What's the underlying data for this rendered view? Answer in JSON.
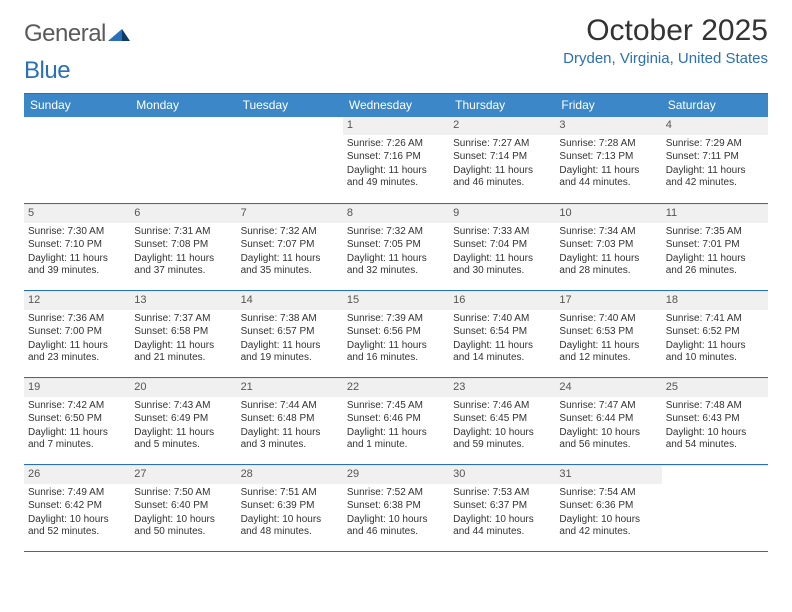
{
  "logo": {
    "general": "General",
    "blue": "Blue"
  },
  "title": "October 2025",
  "location": "Dryden, Virginia, United States",
  "header_bg": "#3b87c8",
  "accent": "#2a70b8",
  "weekdays": [
    "Sunday",
    "Monday",
    "Tuesday",
    "Wednesday",
    "Thursday",
    "Friday",
    "Saturday"
  ],
  "weeks": [
    [
      {
        "n": "",
        "sunrise": "",
        "sunset": "",
        "daylight": ""
      },
      {
        "n": "",
        "sunrise": "",
        "sunset": "",
        "daylight": ""
      },
      {
        "n": "",
        "sunrise": "",
        "sunset": "",
        "daylight": ""
      },
      {
        "n": "1",
        "sunrise": "Sunrise: 7:26 AM",
        "sunset": "Sunset: 7:16 PM",
        "daylight": "Daylight: 11 hours and 49 minutes."
      },
      {
        "n": "2",
        "sunrise": "Sunrise: 7:27 AM",
        "sunset": "Sunset: 7:14 PM",
        "daylight": "Daylight: 11 hours and 46 minutes."
      },
      {
        "n": "3",
        "sunrise": "Sunrise: 7:28 AM",
        "sunset": "Sunset: 7:13 PM",
        "daylight": "Daylight: 11 hours and 44 minutes."
      },
      {
        "n": "4",
        "sunrise": "Sunrise: 7:29 AM",
        "sunset": "Sunset: 7:11 PM",
        "daylight": "Daylight: 11 hours and 42 minutes."
      }
    ],
    [
      {
        "n": "5",
        "sunrise": "Sunrise: 7:30 AM",
        "sunset": "Sunset: 7:10 PM",
        "daylight": "Daylight: 11 hours and 39 minutes."
      },
      {
        "n": "6",
        "sunrise": "Sunrise: 7:31 AM",
        "sunset": "Sunset: 7:08 PM",
        "daylight": "Daylight: 11 hours and 37 minutes."
      },
      {
        "n": "7",
        "sunrise": "Sunrise: 7:32 AM",
        "sunset": "Sunset: 7:07 PM",
        "daylight": "Daylight: 11 hours and 35 minutes."
      },
      {
        "n": "8",
        "sunrise": "Sunrise: 7:32 AM",
        "sunset": "Sunset: 7:05 PM",
        "daylight": "Daylight: 11 hours and 32 minutes."
      },
      {
        "n": "9",
        "sunrise": "Sunrise: 7:33 AM",
        "sunset": "Sunset: 7:04 PM",
        "daylight": "Daylight: 11 hours and 30 minutes."
      },
      {
        "n": "10",
        "sunrise": "Sunrise: 7:34 AM",
        "sunset": "Sunset: 7:03 PM",
        "daylight": "Daylight: 11 hours and 28 minutes."
      },
      {
        "n": "11",
        "sunrise": "Sunrise: 7:35 AM",
        "sunset": "Sunset: 7:01 PM",
        "daylight": "Daylight: 11 hours and 26 minutes."
      }
    ],
    [
      {
        "n": "12",
        "sunrise": "Sunrise: 7:36 AM",
        "sunset": "Sunset: 7:00 PM",
        "daylight": "Daylight: 11 hours and 23 minutes."
      },
      {
        "n": "13",
        "sunrise": "Sunrise: 7:37 AM",
        "sunset": "Sunset: 6:58 PM",
        "daylight": "Daylight: 11 hours and 21 minutes."
      },
      {
        "n": "14",
        "sunrise": "Sunrise: 7:38 AM",
        "sunset": "Sunset: 6:57 PM",
        "daylight": "Daylight: 11 hours and 19 minutes."
      },
      {
        "n": "15",
        "sunrise": "Sunrise: 7:39 AM",
        "sunset": "Sunset: 6:56 PM",
        "daylight": "Daylight: 11 hours and 16 minutes."
      },
      {
        "n": "16",
        "sunrise": "Sunrise: 7:40 AM",
        "sunset": "Sunset: 6:54 PM",
        "daylight": "Daylight: 11 hours and 14 minutes."
      },
      {
        "n": "17",
        "sunrise": "Sunrise: 7:40 AM",
        "sunset": "Sunset: 6:53 PM",
        "daylight": "Daylight: 11 hours and 12 minutes."
      },
      {
        "n": "18",
        "sunrise": "Sunrise: 7:41 AM",
        "sunset": "Sunset: 6:52 PM",
        "daylight": "Daylight: 11 hours and 10 minutes."
      }
    ],
    [
      {
        "n": "19",
        "sunrise": "Sunrise: 7:42 AM",
        "sunset": "Sunset: 6:50 PM",
        "daylight": "Daylight: 11 hours and 7 minutes."
      },
      {
        "n": "20",
        "sunrise": "Sunrise: 7:43 AM",
        "sunset": "Sunset: 6:49 PM",
        "daylight": "Daylight: 11 hours and 5 minutes."
      },
      {
        "n": "21",
        "sunrise": "Sunrise: 7:44 AM",
        "sunset": "Sunset: 6:48 PM",
        "daylight": "Daylight: 11 hours and 3 minutes."
      },
      {
        "n": "22",
        "sunrise": "Sunrise: 7:45 AM",
        "sunset": "Sunset: 6:46 PM",
        "daylight": "Daylight: 11 hours and 1 minute."
      },
      {
        "n": "23",
        "sunrise": "Sunrise: 7:46 AM",
        "sunset": "Sunset: 6:45 PM",
        "daylight": "Daylight: 10 hours and 59 minutes."
      },
      {
        "n": "24",
        "sunrise": "Sunrise: 7:47 AM",
        "sunset": "Sunset: 6:44 PM",
        "daylight": "Daylight: 10 hours and 56 minutes."
      },
      {
        "n": "25",
        "sunrise": "Sunrise: 7:48 AM",
        "sunset": "Sunset: 6:43 PM",
        "daylight": "Daylight: 10 hours and 54 minutes."
      }
    ],
    [
      {
        "n": "26",
        "sunrise": "Sunrise: 7:49 AM",
        "sunset": "Sunset: 6:42 PM",
        "daylight": "Daylight: 10 hours and 52 minutes."
      },
      {
        "n": "27",
        "sunrise": "Sunrise: 7:50 AM",
        "sunset": "Sunset: 6:40 PM",
        "daylight": "Daylight: 10 hours and 50 minutes."
      },
      {
        "n": "28",
        "sunrise": "Sunrise: 7:51 AM",
        "sunset": "Sunset: 6:39 PM",
        "daylight": "Daylight: 10 hours and 48 minutes."
      },
      {
        "n": "29",
        "sunrise": "Sunrise: 7:52 AM",
        "sunset": "Sunset: 6:38 PM",
        "daylight": "Daylight: 10 hours and 46 minutes."
      },
      {
        "n": "30",
        "sunrise": "Sunrise: 7:53 AM",
        "sunset": "Sunset: 6:37 PM",
        "daylight": "Daylight: 10 hours and 44 minutes."
      },
      {
        "n": "31",
        "sunrise": "Sunrise: 7:54 AM",
        "sunset": "Sunset: 6:36 PM",
        "daylight": "Daylight: 10 hours and 42 minutes."
      },
      {
        "n": "",
        "sunrise": "",
        "sunset": "",
        "daylight": ""
      }
    ]
  ]
}
